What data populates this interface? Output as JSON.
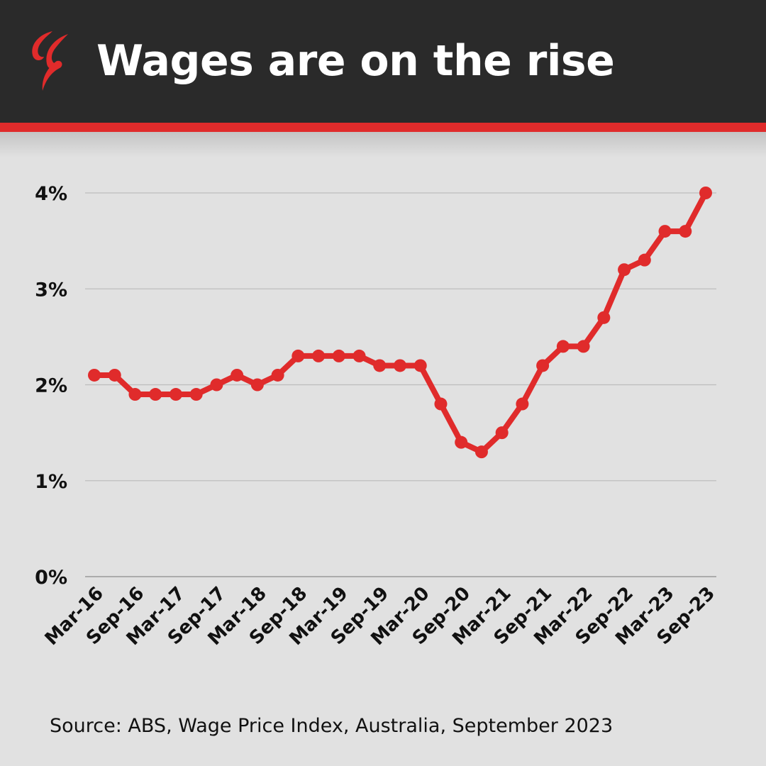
{
  "header": {
    "title": "Wages are on the rise",
    "logo_icon": "sbs-logo-icon",
    "background_color": "#2a2a2a",
    "stripe_color": "#e02b2b"
  },
  "footer": {
    "source": "Source: ABS, Wage Price Index, Australia, September 2023"
  },
  "colors": {
    "series": "#e02b2b",
    "background": "#e1e1e1",
    "gridline": "#bdbdbd"
  },
  "chart_data": {
    "type": "line",
    "title": "Wages are on the rise",
    "xlabel": "",
    "ylabel": "",
    "ylim": [
      0,
      4
    ],
    "grid": true,
    "legend": "none",
    "y_ticks": [
      {
        "value": 0,
        "label": "0%"
      },
      {
        "value": 1,
        "label": "1%"
      },
      {
        "value": 2,
        "label": "2%"
      },
      {
        "value": 3,
        "label": "3%"
      },
      {
        "value": 4,
        "label": "4%"
      }
    ],
    "x": [
      "Mar-16",
      "Jun-16",
      "Sep-16",
      "Dec-16",
      "Mar-17",
      "Jun-17",
      "Sep-17",
      "Dec-17",
      "Mar-18",
      "Jun-18",
      "Sep-18",
      "Dec-18",
      "Mar-19",
      "Jun-19",
      "Sep-19",
      "Dec-19",
      "Mar-20",
      "Jun-20",
      "Sep-20",
      "Dec-20",
      "Mar-21",
      "Jun-21",
      "Sep-21",
      "Dec-21",
      "Mar-22",
      "Jun-22",
      "Sep-22",
      "Dec-22",
      "Mar-23",
      "Jun-23",
      "Sep-23"
    ],
    "x_tick_labels": [
      "Mar-16",
      "Sep-16",
      "Mar-17",
      "Sep-17",
      "Mar-18",
      "Sep-18",
      "Mar-19",
      "Sep-19",
      "Mar-20",
      "Sep-20",
      "Mar-21",
      "Sep-21",
      "Mar-22",
      "Sep-22",
      "Mar-23",
      "Sep-23"
    ],
    "series": [
      {
        "values": [
          2.1,
          2.1,
          1.9,
          1.9,
          1.9,
          1.9,
          2.0,
          2.1,
          2.0,
          2.1,
          2.3,
          2.3,
          2.3,
          2.3,
          2.2,
          2.2,
          2.2,
          1.8,
          1.4,
          1.3,
          1.5,
          1.8,
          2.2,
          2.4,
          2.4,
          2.7,
          3.2,
          3.3,
          3.6,
          3.6,
          4.0
        ]
      }
    ]
  }
}
